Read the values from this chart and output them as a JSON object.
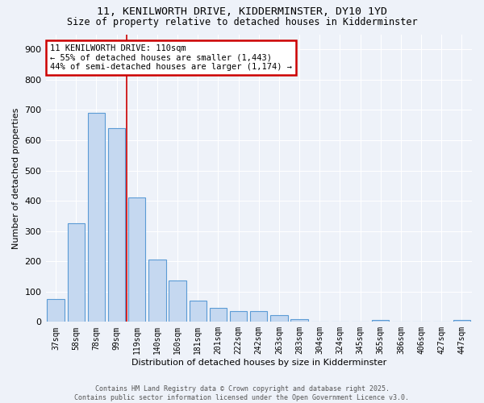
{
  "title_line1": "11, KENILWORTH DRIVE, KIDDERMINSTER, DY10 1YD",
  "title_line2": "Size of property relative to detached houses in Kidderminster",
  "xlabel": "Distribution of detached houses by size in Kidderminster",
  "ylabel": "Number of detached properties",
  "categories": [
    "37sqm",
    "58sqm",
    "78sqm",
    "99sqm",
    "119sqm",
    "140sqm",
    "160sqm",
    "181sqm",
    "201sqm",
    "222sqm",
    "242sqm",
    "263sqm",
    "283sqm",
    "304sqm",
    "324sqm",
    "345sqm",
    "365sqm",
    "386sqm",
    "406sqm",
    "427sqm",
    "447sqm"
  ],
  "values": [
    75,
    325,
    690,
    640,
    410,
    205,
    137,
    70,
    47,
    35,
    35,
    22,
    10,
    2,
    0,
    0,
    5,
    0,
    0,
    0,
    5
  ],
  "bar_color": "#c5d8f0",
  "bar_edge_color": "#5b9bd5",
  "annotation_text": "11 KENILWORTH DRIVE: 110sqm\n← 55% of detached houses are smaller (1,443)\n44% of semi-detached houses are larger (1,174) →",
  "annotation_box_color": "#ffffff",
  "annotation_box_edge": "#cc0000",
  "vline_x": 3.5,
  "vline_color": "#cc0000",
  "ylim": [
    0,
    950
  ],
  "yticks": [
    0,
    100,
    200,
    300,
    400,
    500,
    600,
    700,
    800,
    900
  ],
  "background_color": "#eef2f9",
  "grid_color": "#ffffff",
  "footer_line1": "Contains HM Land Registry data © Crown copyright and database right 2025.",
  "footer_line2": "Contains public sector information licensed under the Open Government Licence v3.0."
}
